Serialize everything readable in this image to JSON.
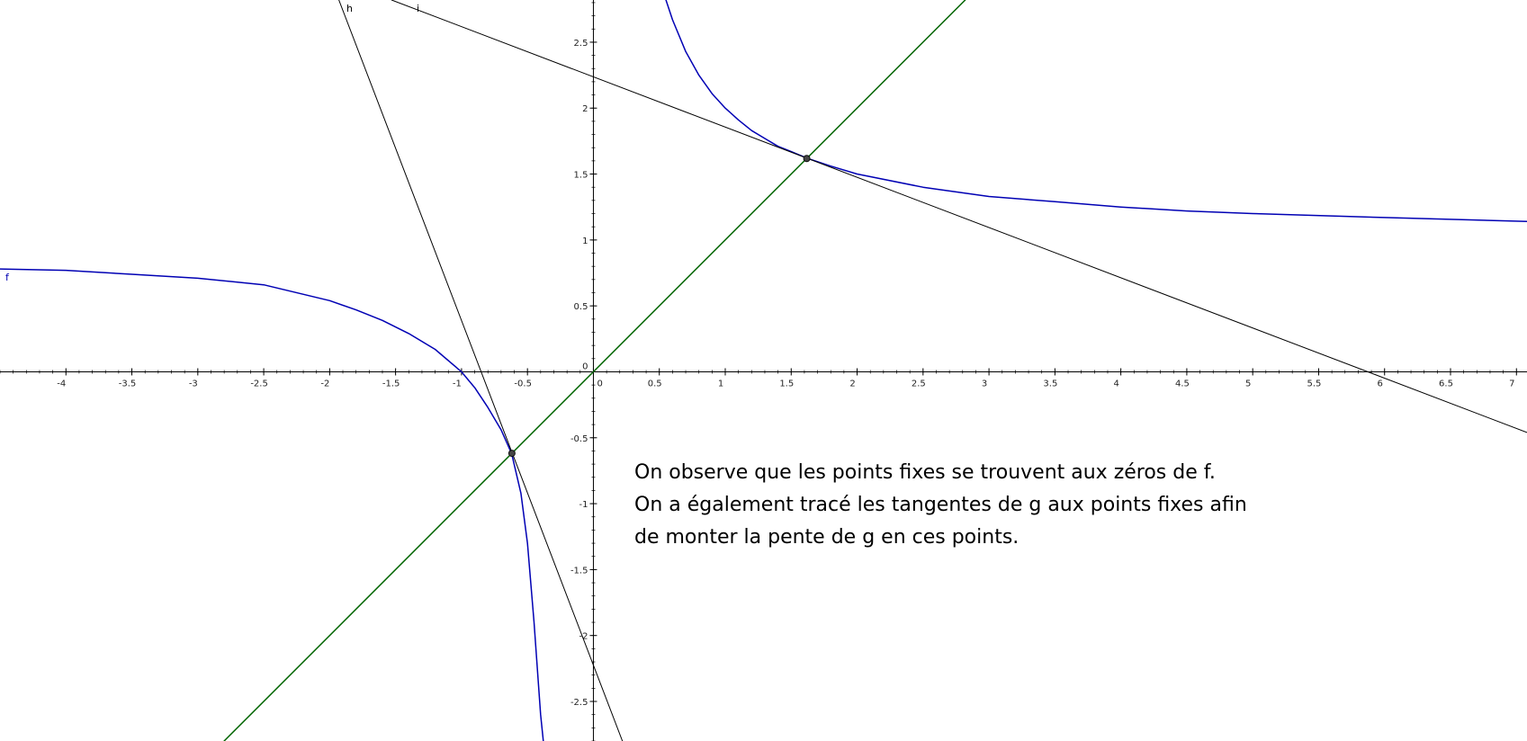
{
  "chart_data": {
    "type": "line",
    "title": "",
    "xlabel": "",
    "ylabel": "",
    "xlim": [
      -4.5,
      7.08
    ],
    "ylim": [
      -2.8,
      2.82
    ],
    "grid": false,
    "x_ticks": [
      -4,
      -3.5,
      -3,
      -2.5,
      -2,
      -1.5,
      -1,
      -0.5,
      0,
      0.5,
      1,
      1.5,
      2,
      2.5,
      3,
      3.5,
      4,
      4.5,
      5,
      5.5,
      6,
      6.5,
      7
    ],
    "x_tick_labels": [
      "-4",
      "-3.5",
      "-3",
      "-2.5",
      "-2",
      "-1.5",
      "-1",
      "-0.5",
      "0",
      "0.5",
      "1",
      "1.5",
      "2",
      "2.5",
      "3",
      "3.5",
      "4",
      "4.5",
      "5",
      "5.5",
      "6",
      "6.5",
      "7"
    ],
    "y_ticks": [
      -2.5,
      -2,
      -1.5,
      -1,
      -0.5,
      0,
      0.5,
      1,
      1.5,
      2,
      2.5
    ],
    "y_tick_labels": [
      "-2.5",
      "-2",
      "-1.5",
      "-1",
      "-0.5",
      "0",
      "0.5",
      "1",
      "1.5",
      "2",
      "2.5"
    ],
    "series": [
      {
        "name": "f",
        "color": "#0000b4",
        "points": [
          [
            -4.5,
            0.78
          ],
          [
            -4,
            0.77
          ],
          [
            -3.5,
            0.74
          ],
          [
            -3,
            0.71
          ],
          [
            -2.5,
            0.66
          ],
          [
            -2,
            0.54
          ],
          [
            -1.8,
            0.47
          ],
          [
            -1.6,
            0.39
          ],
          [
            -1.4,
            0.29
          ],
          [
            -1.2,
            0.17
          ],
          [
            -1.0,
            0.0
          ],
          [
            -0.9,
            -0.12
          ],
          [
            -0.8,
            -0.27
          ],
          [
            -0.7,
            -0.44
          ],
          [
            -0.62,
            -0.62
          ],
          [
            -0.55,
            -0.92
          ],
          [
            -0.5,
            -1.3
          ],
          [
            -0.45,
            -1.9
          ],
          [
            -0.4,
            -2.6
          ],
          [
            -0.38,
            -2.8
          ]
        ]
      },
      {
        "name": "",
        "color": "#0000b4",
        "points": [
          [
            0.55,
            2.82
          ],
          [
            0.6,
            2.67
          ],
          [
            0.7,
            2.43
          ],
          [
            0.8,
            2.25
          ],
          [
            0.9,
            2.11
          ],
          [
            1.0,
            2.0
          ],
          [
            1.1,
            1.91
          ],
          [
            1.2,
            1.83
          ],
          [
            1.3,
            1.77
          ],
          [
            1.4,
            1.71
          ],
          [
            1.5,
            1.67
          ],
          [
            1.62,
            1.62
          ],
          [
            1.8,
            1.56
          ],
          [
            2.0,
            1.5
          ],
          [
            2.5,
            1.4
          ],
          [
            3,
            1.33
          ],
          [
            3.5,
            1.29
          ],
          [
            4,
            1.25
          ],
          [
            4.5,
            1.22
          ],
          [
            5,
            1.2
          ],
          [
            6,
            1.17
          ],
          [
            7.08,
            1.14
          ]
        ]
      },
      {
        "name": "",
        "color": "#006400",
        "points": [
          [
            -2.8,
            -2.8
          ],
          [
            2.82,
            2.82
          ]
        ]
      },
      {
        "name": "h",
        "color": "#000000",
        "points": [
          [
            -1.93,
            2.82
          ],
          [
            0.22,
            -2.8
          ]
        ]
      },
      {
        "name": "i",
        "color": "#000000",
        "points": [
          [
            -1.53,
            2.82
          ],
          [
            7.08,
            -0.46
          ]
        ]
      }
    ],
    "points": [
      {
        "x": 1.618,
        "y": 1.618
      },
      {
        "x": -0.618,
        "y": -0.618
      }
    ]
  },
  "annotation": {
    "lines": [
      "On observe que les points fixes se trouvent aux zéros de f.",
      "On a également tracé les tangentes de g aux points fixes afin",
      "de monter la pente de g en ces points."
    ]
  }
}
